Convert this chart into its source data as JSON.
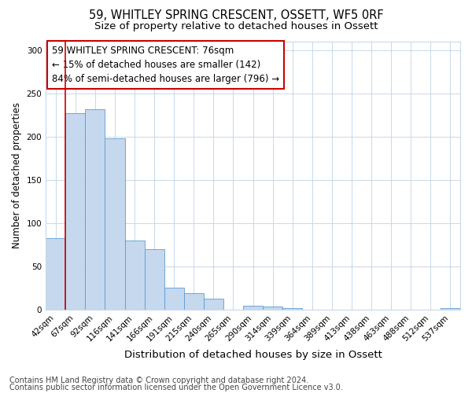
{
  "title1": "59, WHITLEY SPRING CRESCENT, OSSETT, WF5 0RF",
  "title2": "Size of property relative to detached houses in Ossett",
  "xlabel": "Distribution of detached houses by size in Ossett",
  "ylabel": "Number of detached properties",
  "categories": [
    "42sqm",
    "67sqm",
    "92sqm",
    "116sqm",
    "141sqm",
    "166sqm",
    "191sqm",
    "215sqm",
    "240sqm",
    "265sqm",
    "290sqm",
    "314sqm",
    "339sqm",
    "364sqm",
    "389sqm",
    "413sqm",
    "438sqm",
    "463sqm",
    "488sqm",
    "512sqm",
    "537sqm"
  ],
  "values": [
    83,
    227,
    232,
    198,
    80,
    70,
    26,
    19,
    13,
    0,
    5,
    4,
    2,
    0,
    0,
    0,
    0,
    0,
    0,
    0,
    2
  ],
  "bar_color": "#c5d8ed",
  "bar_edge_color": "#5b9bd5",
  "annotation_lines": [
    "59 WHITLEY SPRING CRESCENT: 76sqm",
    "← 15% of detached houses are smaller (142)",
    "84% of semi-detached houses are larger (796) →"
  ],
  "annotation_box_color": "#ffffff",
  "annotation_box_edge": "#cc0000",
  "red_line_color": "#cc0000",
  "red_line_x": 0.5,
  "ylim": [
    0,
    310
  ],
  "yticks": [
    0,
    50,
    100,
    150,
    200,
    250,
    300
  ],
  "footer1": "Contains HM Land Registry data © Crown copyright and database right 2024.",
  "footer2": "Contains public sector information licensed under the Open Government Licence v3.0.",
  "bg_color": "#ffffff",
  "grid_color": "#c8d8e8",
  "title1_fontsize": 10.5,
  "title2_fontsize": 9.5,
  "xlabel_fontsize": 9.5,
  "ylabel_fontsize": 8.5,
  "tick_fontsize": 7.5,
  "annotation_fontsize": 8.5,
  "footer_fontsize": 7
}
